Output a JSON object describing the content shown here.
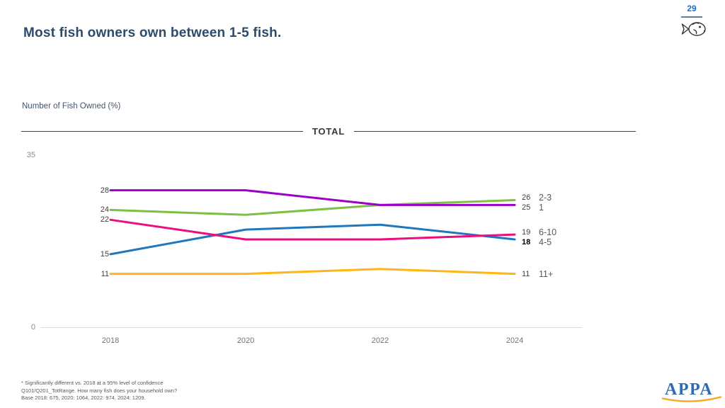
{
  "header": {
    "page_number": "29",
    "title": "Most fish owners own between 1-5 fish."
  },
  "chart": {
    "axis_title": "Number of Fish Owned (%)",
    "group_label": "TOTAL",
    "y_max_label": "35",
    "y_min_label": "0"
  },
  "chart_data": {
    "type": "line",
    "title": "Number of Fish Owned (%)",
    "x": [
      2018,
      2020,
      2022,
      2024
    ],
    "ylim": [
      0,
      35
    ],
    "grid": false,
    "legend_position": "right",
    "series": [
      {
        "name": "11+",
        "color": "#FFB517",
        "values": [
          11,
          11,
          12,
          11
        ],
        "end_bold": false
      },
      {
        "name": "4-5",
        "color": "#1F78BE",
        "values": [
          15,
          20,
          21,
          18
        ],
        "end_bold": true
      },
      {
        "name": "6-10",
        "color": "#EC0E7E",
        "values": [
          22,
          18,
          18,
          19
        ],
        "end_bold": false
      },
      {
        "name": "2-3",
        "color": "#7CC142",
        "values": [
          24,
          23,
          25,
          26
        ],
        "end_bold": false
      },
      {
        "name": "1",
        "color": "#9C00C8",
        "values": [
          28,
          28,
          25,
          25
        ],
        "end_bold": false
      }
    ]
  },
  "footnote": {
    "lines": [
      "* Significantly different vs. 2018 at a 95% level of confidence",
      "Q101/Q201_TotRange. How many fish does your household own?",
      "Base 2018: 675, 2020: 1064, 2022: 974, 2024: 1209."
    ]
  },
  "logo": {
    "text": "APPA"
  }
}
